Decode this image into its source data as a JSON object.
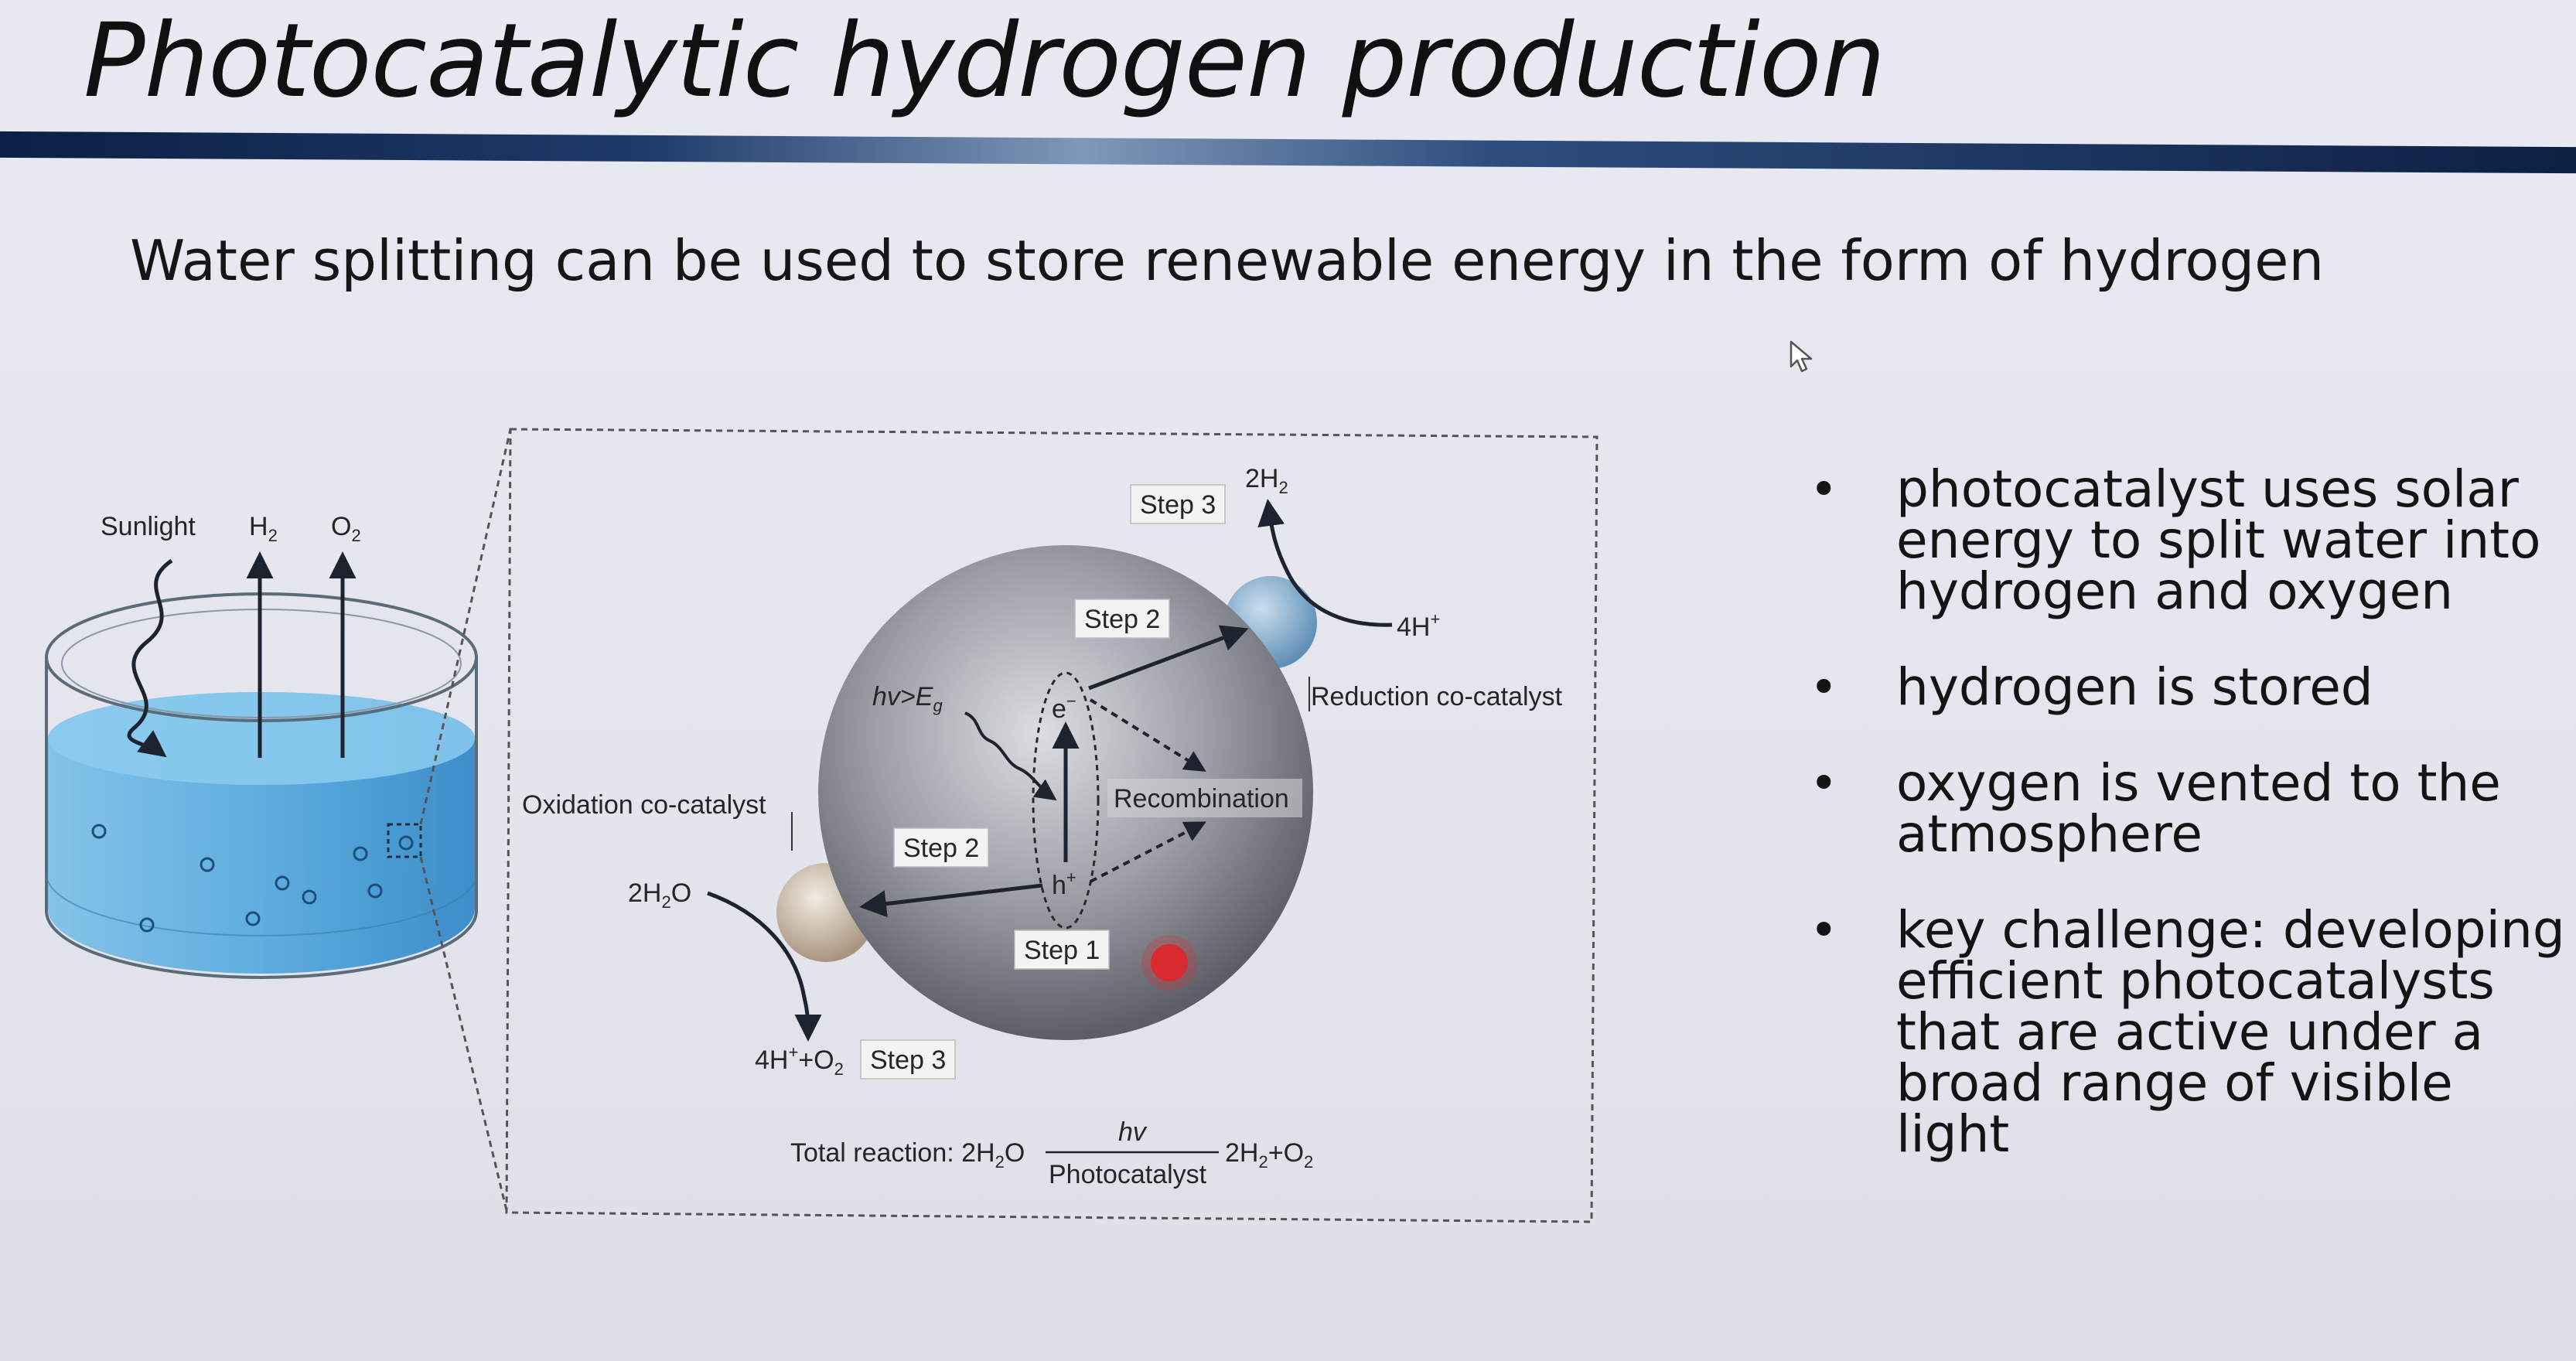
{
  "slide": {
    "title": "Photocatalytic hydrogen production",
    "subtitle": "Water splitting can be used to store renewable energy in the form of hydrogen"
  },
  "beaker": {
    "sunlight": "Sunlight",
    "h2_label": "H",
    "h2_sub": "2",
    "o2_label": "O",
    "o2_sub": "2"
  },
  "particle": {
    "top_product": "2H",
    "top_product_sub": "2",
    "step3_top": "Step 3",
    "proton_right": "4H",
    "proton_right_sup": "+",
    "step2_top": "Step 2",
    "reduction": "Reduction co-catalyst",
    "hv": "hv>E",
    "hv_sub": "g",
    "electron": "e",
    "electron_sup": "−",
    "recombination": "Recombination",
    "oxidation": "Oxidation co-catalyst",
    "step2_bottom": "Step 2",
    "water_main": "2H",
    "water_sub": "2",
    "water_end": "O",
    "hole": "h",
    "hole_sup": "+",
    "step1": "Step 1",
    "products_bottom_a": "4H",
    "products_bottom_sup": "+",
    "products_bottom_b": "+O",
    "products_bottom_sub": "2",
    "step3_bottom": "Step 3",
    "total_label": "Total reaction: 2H",
    "total_label_sub": "2",
    "total_label_end": "O",
    "total_top": "hv",
    "total_bottom": "Photocatalyst",
    "total_right_a": "2H",
    "total_right_sub1": "2",
    "total_right_b": "+O",
    "total_right_sub2": "2"
  },
  "bullets": [
    "photocatalyst uses solar energy to split water into hydrogen and oxygen",
    "hydrogen is stored",
    "oxygen is vented to the atmosphere",
    "key challenge: developing efficient photocatalysts that are active under a broad range of visible light"
  ],
  "bullet_symbol": "•",
  "colors": {
    "water": "#4aa6dd",
    "water_dark": "#2f88c4",
    "title_bar": "#0c1f44",
    "particle": "#8e8e96",
    "reduction_cocatalyst": "#7fa7c8",
    "oxidation_cocatalyst": "#c9b9a4",
    "laser_dot": "#e0262a"
  }
}
